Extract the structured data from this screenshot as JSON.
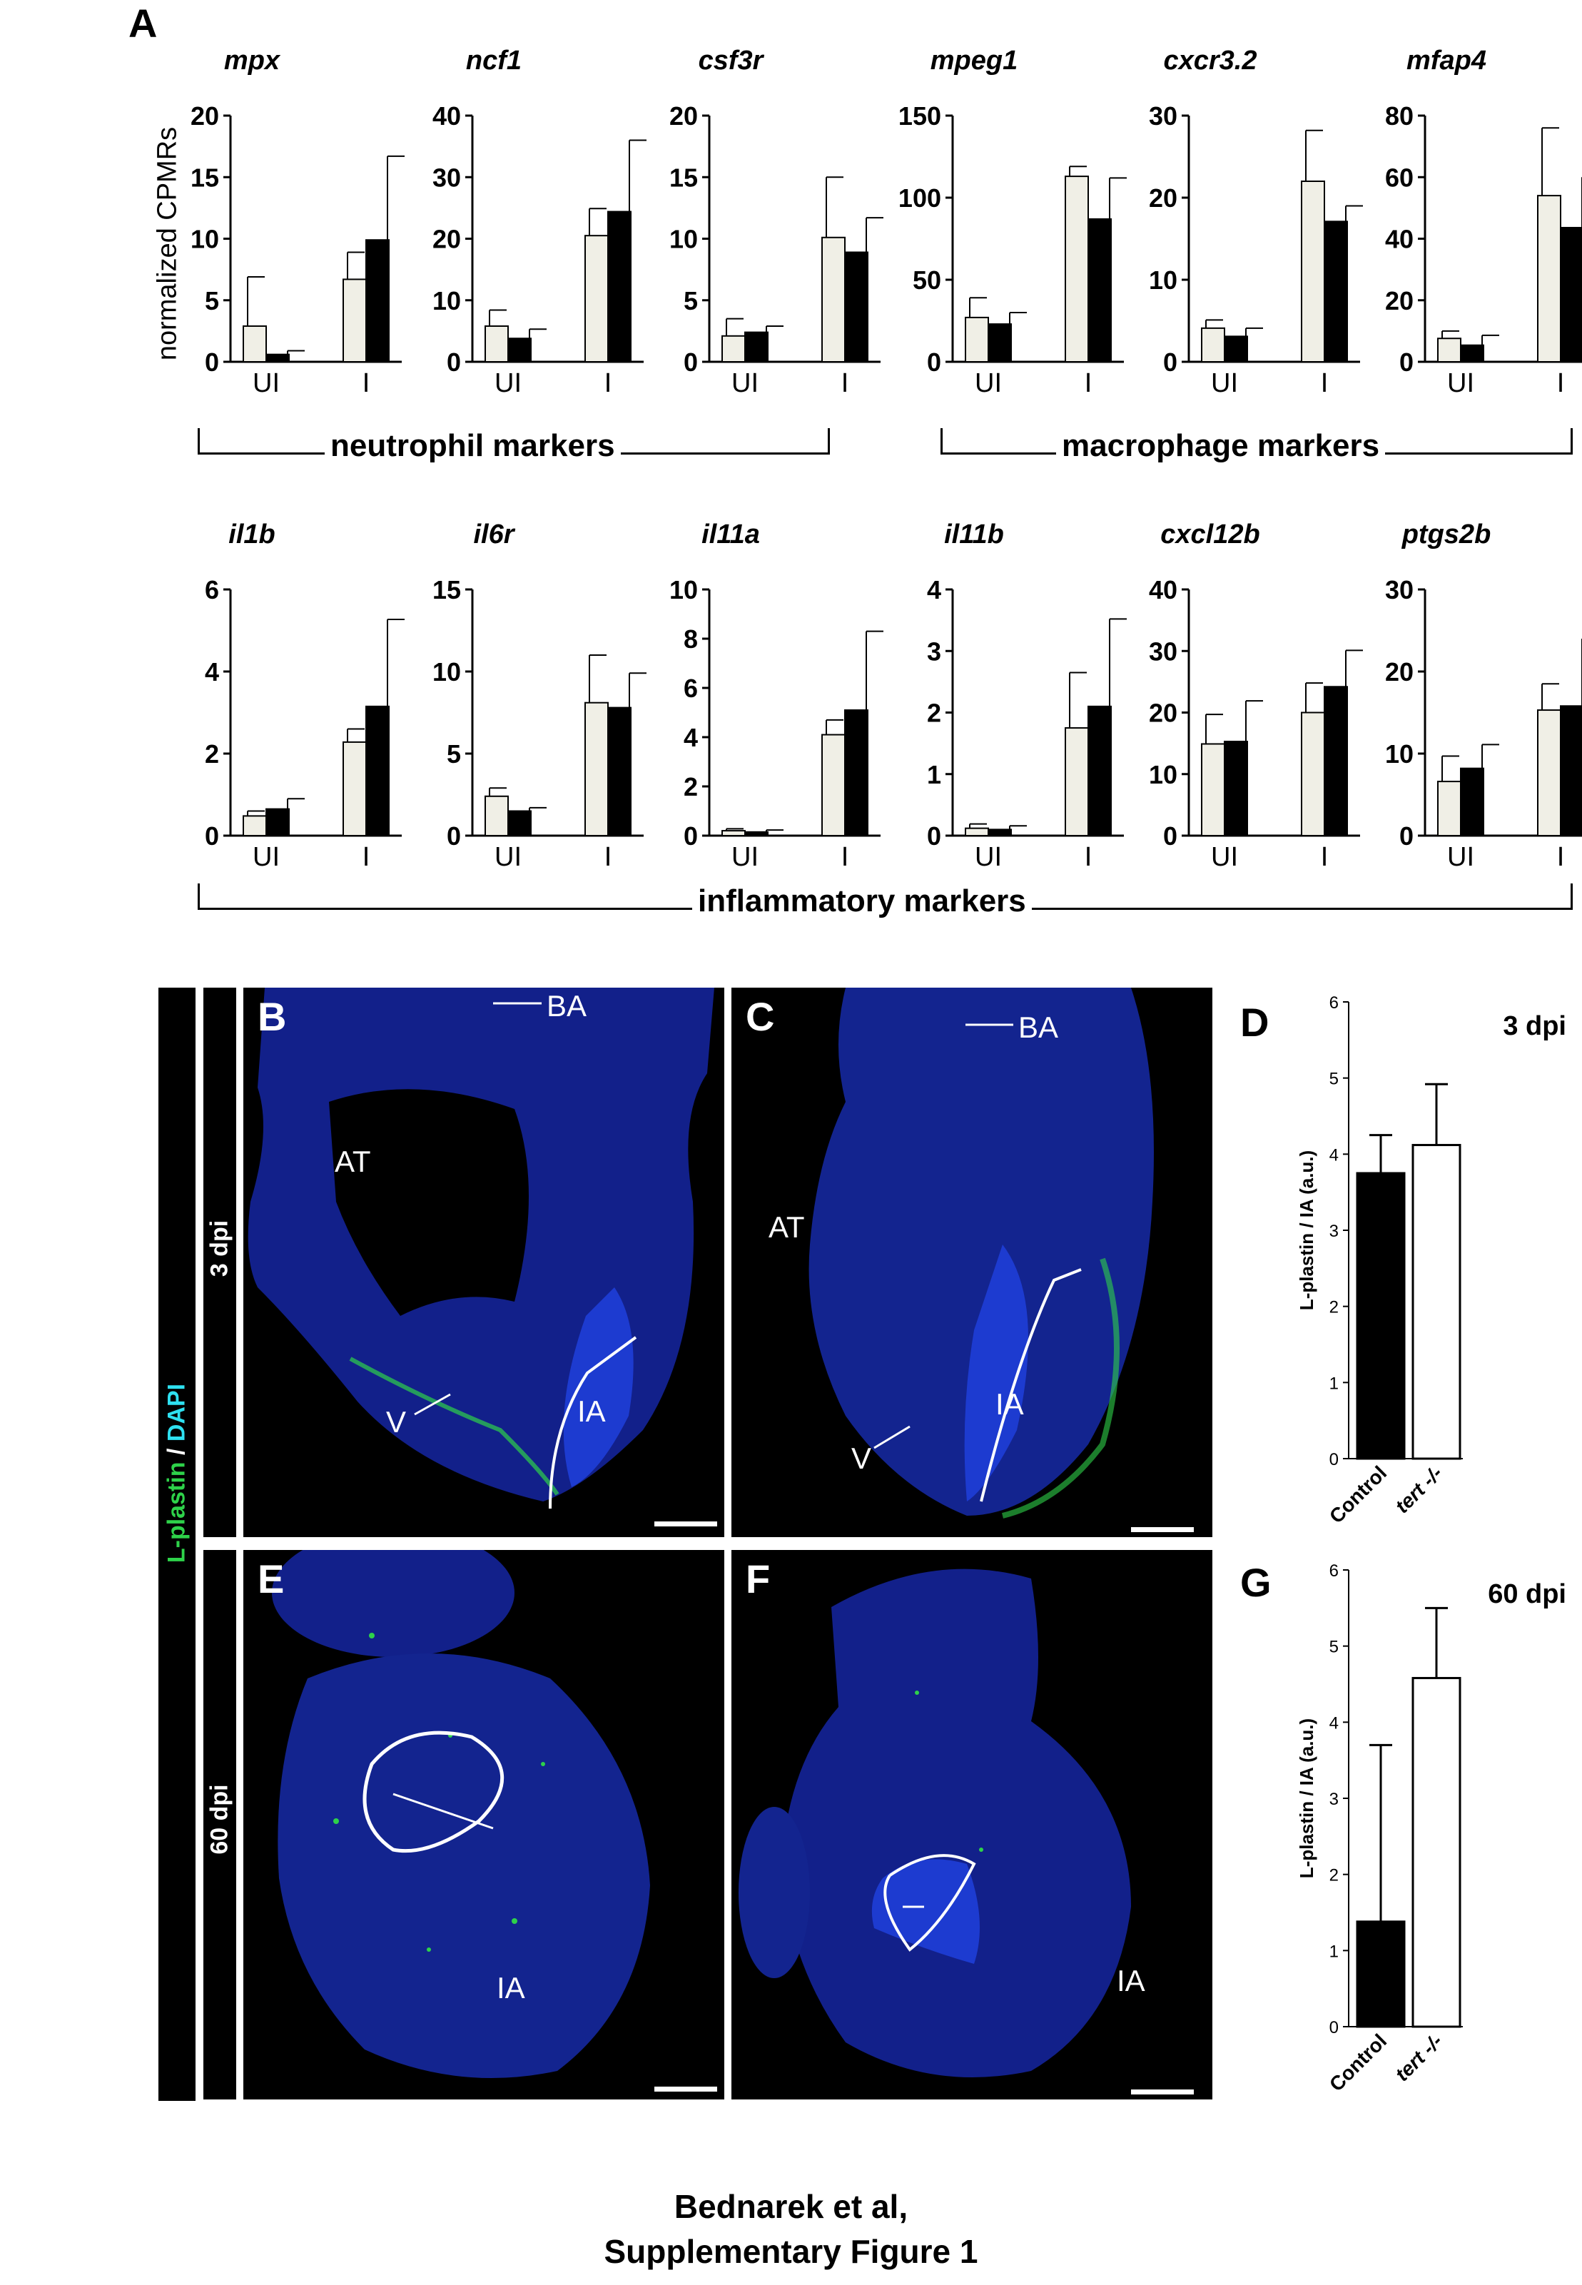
{
  "panel_letters": {
    "a": "A",
    "b": "B",
    "c": "C",
    "d": "D",
    "e": "E",
    "f": "F",
    "g": "G"
  },
  "y_axis_label_A": "normalized CPMRs",
  "group_labels": {
    "neutrophil": "neutrophil markers",
    "macrophage": "macrophage markers",
    "inflammatory": "inflammatory markers"
  },
  "colors": {
    "uninjured_bar": "#f0efe6",
    "injured_bar": "#000000",
    "control_bar": "#000000",
    "tert_bar": "#ffffff",
    "dapi": "#1a2bd6",
    "lplastin": "#2ed24a",
    "outline": "#ffffff"
  },
  "chart_data": [
    {
      "type": "bar",
      "gene": "mpx",
      "categories": [
        "UI",
        "I"
      ],
      "series": [
        {
          "values": [
            2.9,
            6.7
          ],
          "errors": [
            4.0,
            2.2
          ]
        },
        {
          "values": [
            0.6,
            9.9
          ],
          "errors": [
            0.3,
            6.8
          ]
        }
      ],
      "ylim": [
        0,
        20
      ],
      "yticks": [
        "0",
        "5",
        "10",
        "15",
        "20"
      ]
    },
    {
      "type": "bar",
      "gene": "ncf1",
      "categories": [
        "UI",
        "I"
      ],
      "series": [
        {
          "values": [
            5.8,
            20.5
          ],
          "errors": [
            2.6,
            4.4
          ]
        },
        {
          "values": [
            3.8,
            24.4
          ],
          "errors": [
            1.5,
            11.6
          ]
        }
      ],
      "ylim": [
        0,
        40
      ],
      "yticks": [
        "0",
        "10",
        "20",
        "30",
        "40"
      ]
    },
    {
      "type": "bar",
      "gene": "csf3r",
      "categories": [
        "UI",
        "I"
      ],
      "series": [
        {
          "values": [
            2.1,
            10.1
          ],
          "errors": [
            1.4,
            4.9
          ]
        },
        {
          "values": [
            2.4,
            8.9
          ],
          "errors": [
            0.5,
            2.8
          ]
        }
      ],
      "ylim": [
        0,
        20
      ],
      "yticks": [
        "0",
        "5",
        "10",
        "15",
        "20"
      ]
    },
    {
      "type": "bar",
      "gene": "mpeg1",
      "categories": [
        "UI",
        "I"
      ],
      "series": [
        {
          "values": [
            27,
            113
          ],
          "errors": [
            12,
            6
          ]
        },
        {
          "values": [
            23,
            87
          ],
          "errors": [
            7,
            25
          ]
        }
      ],
      "ylim": [
        0,
        150
      ],
      "yticks": [
        "0",
        "50",
        "100",
        "150"
      ]
    },
    {
      "type": "bar",
      "gene": "cxcr3.2",
      "categories": [
        "UI",
        "I"
      ],
      "series": [
        {
          "values": [
            4.1,
            22
          ],
          "errors": [
            1.0,
            6.2
          ]
        },
        {
          "values": [
            3.1,
            17.1
          ],
          "errors": [
            1.0,
            1.9
          ]
        }
      ],
      "ylim": [
        0,
        30
      ],
      "yticks": [
        "0",
        "10",
        "20",
        "30"
      ]
    },
    {
      "type": "bar",
      "gene": "mfap4",
      "categories": [
        "UI",
        "I"
      ],
      "series": [
        {
          "values": [
            7.6,
            54
          ],
          "errors": [
            2.4,
            22
          ]
        },
        {
          "values": [
            5.4,
            43.6
          ],
          "errors": [
            3.2,
            16.4
          ]
        }
      ],
      "ylim": [
        0,
        80
      ],
      "yticks": [
        "0",
        "20",
        "40",
        "60",
        "80"
      ]
    },
    {
      "type": "bar",
      "gene": "il1b",
      "categories": [
        "UI",
        "I"
      ],
      "series": [
        {
          "values": [
            0.48,
            2.28
          ],
          "errors": [
            0.12,
            0.32
          ]
        },
        {
          "values": [
            0.65,
            3.15
          ],
          "errors": [
            0.25,
            2.12
          ]
        }
      ],
      "ylim": [
        0,
        6
      ],
      "yticks": [
        "0",
        "2",
        "4",
        "6"
      ]
    },
    {
      "type": "bar",
      "gene": "il6r",
      "categories": [
        "UI",
        "I"
      ],
      "series": [
        {
          "values": [
            2.4,
            8.1
          ],
          "errors": [
            0.5,
            2.9
          ]
        },
        {
          "values": [
            1.5,
            7.8
          ],
          "errors": [
            0.2,
            2.1
          ]
        }
      ],
      "ylim": [
        0,
        15
      ],
      "yticks": [
        "0",
        "5",
        "10",
        "15"
      ]
    },
    {
      "type": "bar",
      "gene": "il11a",
      "categories": [
        "UI",
        "I"
      ],
      "series": [
        {
          "values": [
            0.2,
            4.1
          ],
          "errors": [
            0.08,
            0.6
          ]
        },
        {
          "values": [
            0.15,
            5.1
          ],
          "errors": [
            0.08,
            3.2
          ]
        }
      ],
      "ylim": [
        0,
        10
      ],
      "yticks": [
        "0",
        "2",
        "4",
        "6",
        "8",
        "10"
      ]
    },
    {
      "type": "bar",
      "gene": "il11b",
      "categories": [
        "UI",
        "I"
      ],
      "series": [
        {
          "values": [
            0.12,
            1.75
          ],
          "errors": [
            0.07,
            0.9
          ]
        },
        {
          "values": [
            0.1,
            2.1
          ],
          "errors": [
            0.06,
            1.42
          ]
        }
      ],
      "ylim": [
        0,
        4
      ],
      "yticks": [
        "0",
        "1",
        "2",
        "3",
        "4"
      ]
    },
    {
      "type": "bar",
      "gene": "cxcl12b",
      "categories": [
        "UI",
        "I"
      ],
      "series": [
        {
          "values": [
            14.9,
            20
          ],
          "errors": [
            4.8,
            4.8
          ]
        },
        {
          "values": [
            15.3,
            24.2
          ],
          "errors": [
            6.6,
            5.9
          ]
        }
      ],
      "ylim": [
        0,
        40
      ],
      "yticks": [
        "0",
        "10",
        "20",
        "30",
        "40"
      ]
    },
    {
      "type": "bar",
      "gene": "ptgs2b",
      "categories": [
        "UI",
        "I"
      ],
      "series": [
        {
          "values": [
            6.6,
            15.3
          ],
          "errors": [
            3.1,
            3.2
          ]
        },
        {
          "values": [
            8.2,
            15.8
          ],
          "errors": [
            2.9,
            8.2
          ]
        }
      ],
      "ylim": [
        0,
        30
      ],
      "yticks": [
        "0",
        "10",
        "20",
        "30"
      ]
    },
    {
      "type": "bar",
      "panel": "D",
      "title": "3 dpi",
      "ylabel": "L-plastin / IA (a.u.)",
      "categories": [
        "Control",
        "tert -/-"
      ],
      "values": [
        3.75,
        4.12
      ],
      "errors": [
        0.5,
        0.8
      ],
      "ylim": [
        0,
        6
      ],
      "yticks": [
        "0",
        "1",
        "2",
        "3",
        "4",
        "5",
        "6"
      ]
    },
    {
      "type": "bar",
      "panel": "G",
      "title": "60 dpi",
      "ylabel": "L-plastin / IA (a.u.)",
      "categories": [
        "Control",
        "tert -/-"
      ],
      "values": [
        1.38,
        4.58
      ],
      "errors": [
        2.32,
        0.92
      ],
      "ylim": [
        0,
        6
      ],
      "yticks": [
        "0",
        "1",
        "2",
        "3",
        "4",
        "5",
        "6"
      ]
    }
  ],
  "micrographs": {
    "stain_label_green": "L-plastin",
    "stain_label_sep": " / ",
    "stain_label_cyan": "DAPI",
    "row_labels": [
      "3 dpi",
      "60 dpi"
    ],
    "labels": {
      "ba": "BA",
      "at": "AT",
      "ia": "IA",
      "v": "V"
    }
  },
  "footer": {
    "line1": "Bednarek et al,",
    "line2": "Supplementary Figure 1"
  }
}
